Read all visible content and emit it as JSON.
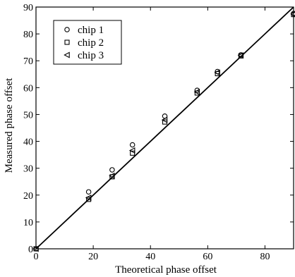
{
  "chart_data": {
    "type": "scatter",
    "title": "",
    "xlabel": "Theoretical phase offset",
    "ylabel": "Measured phase offset",
    "xlim": [
      0,
      90
    ],
    "ylim": [
      0,
      90
    ],
    "xticks": [
      "0",
      "20",
      "40",
      "60",
      "80"
    ],
    "yticks": [
      "0",
      "10",
      "20",
      "30",
      "40",
      "50",
      "60",
      "70",
      "80",
      "90"
    ],
    "grid": false,
    "legend_position": "top-left",
    "series": [
      {
        "name": "chip 1",
        "marker": "circle",
        "x": [
          0,
          18.4,
          26.6,
          33.7,
          45,
          56.3,
          63.4,
          71.6,
          90
        ],
        "y": [
          0,
          21.2,
          29.4,
          38.7,
          49.4,
          59.0,
          66.0,
          72.2,
          87.6
        ]
      },
      {
        "name": "chip 2",
        "marker": "square",
        "x": [
          0,
          18.4,
          26.6,
          33.7,
          45,
          56.3,
          63.4,
          71.6,
          90
        ],
        "y": [
          0,
          18.4,
          26.8,
          35.6,
          47.2,
          58.0,
          65.2,
          71.8,
          87.2
        ]
      },
      {
        "name": "chip 3",
        "marker": "triangle-left",
        "x": [
          0,
          18.4,
          26.6,
          33.7,
          45,
          56.3,
          63.4,
          71.6,
          90
        ],
        "y": [
          0,
          19.0,
          27.2,
          36.6,
          48.0,
          58.4,
          65.6,
          72.0,
          87.4
        ]
      }
    ],
    "reference_line": {
      "x": [
        0,
        90
      ],
      "y": [
        0,
        90
      ]
    }
  }
}
